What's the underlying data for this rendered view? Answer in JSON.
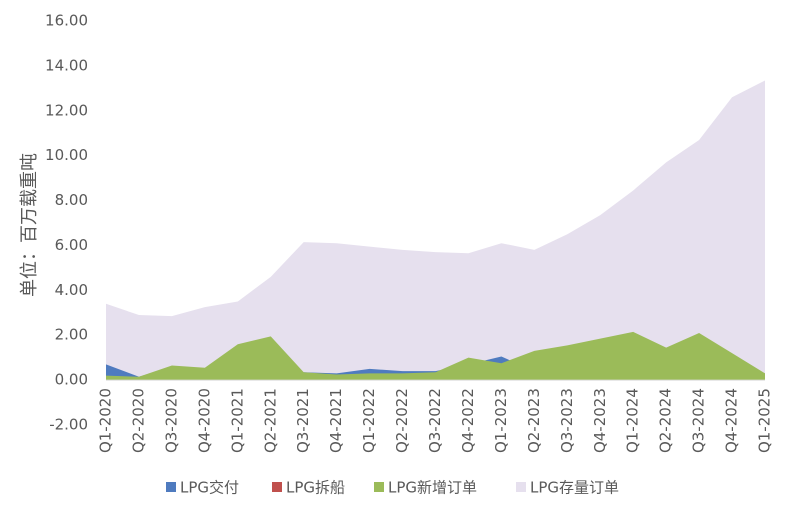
{
  "chart_data": {
    "type": "area",
    "y_label": "单位：百万载重吨",
    "categories": [
      "Q1-2020",
      "Q2-2020",
      "Q3-2020",
      "Q4-2020",
      "Q1-2021",
      "Q2-2021",
      "Q3-2021",
      "Q4-2021",
      "Q1-2022",
      "Q2-2022",
      "Q3-2022",
      "Q4-2022",
      "Q1-2023",
      "Q2-2023",
      "Q3-2023",
      "Q4-2023",
      "Q1-2024",
      "Q2-2024",
      "Q3-2024",
      "Q4-2024",
      "Q1-2025"
    ],
    "series": [
      {
        "name": "LPG交付",
        "color": "#4f7bbf",
        "values": [
          0.7,
          0.15,
          0.6,
          0.5,
          0.3,
          0.2,
          0.35,
          0.3,
          0.5,
          0.4,
          0.4,
          0.7,
          1.05,
          0.4,
          0.4,
          0.5,
          0.5,
          0.5,
          0.5,
          0.4,
          0.3
        ]
      },
      {
        "name": "LPG拆船",
        "color": "#c0504d",
        "values": [
          0,
          0,
          0,
          0,
          0,
          0,
          0,
          0,
          0,
          0,
          0,
          0,
          0,
          0,
          0,
          0,
          0,
          0,
          0,
          0,
          0
        ]
      },
      {
        "name": "LPG新增订单",
        "color": "#9bbb59",
        "values": [
          0.2,
          0.15,
          0.65,
          0.55,
          1.6,
          1.95,
          0.35,
          0.25,
          0.3,
          0.3,
          0.35,
          1.0,
          0.75,
          1.3,
          1.55,
          1.85,
          2.15,
          1.45,
          2.1,
          1.2,
          0.3
        ]
      },
      {
        "name": "LPG存量订单",
        "color": "#e6e0ee",
        "values": [
          3.4,
          2.9,
          2.85,
          3.25,
          3.5,
          4.6,
          6.15,
          6.1,
          5.95,
          5.8,
          5.7,
          5.65,
          6.1,
          5.8,
          6.5,
          7.35,
          8.45,
          9.7,
          10.7,
          12.6,
          13.35
        ]
      }
    ],
    "draw_order": [
      3,
      0,
      1,
      2
    ],
    "ylim": [
      -2,
      16
    ],
    "yticks": [
      {
        "value": -2,
        "label": "-2.00"
      },
      {
        "value": 0,
        "label": "0.00"
      },
      {
        "value": 2,
        "label": "2.00"
      },
      {
        "value": 4,
        "label": "4.00"
      },
      {
        "value": 6,
        "label": "6.00"
      },
      {
        "value": 8,
        "label": "8.00"
      },
      {
        "value": 10,
        "label": "10.00"
      },
      {
        "value": 12,
        "label": "12.00"
      },
      {
        "value": 14,
        "label": "14.00"
      },
      {
        "value": 16,
        "label": "16.00"
      }
    ],
    "legend": "bottom"
  }
}
